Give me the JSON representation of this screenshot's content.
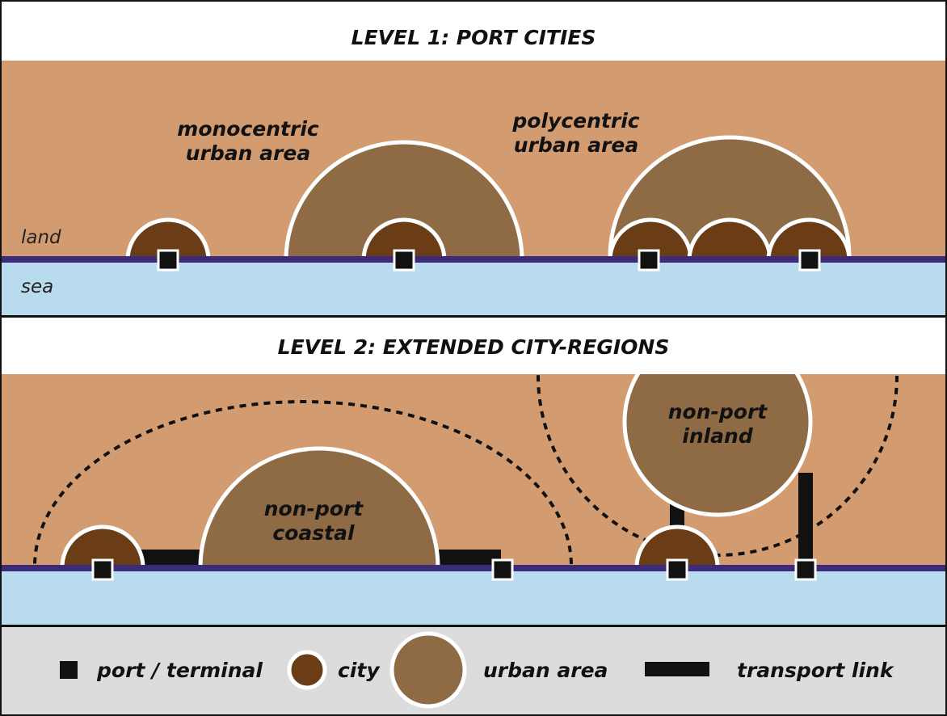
{
  "level_1": {
    "title": "LEVEL 1: PORT CITIES",
    "labels": {
      "monocentric": [
        "monocentric",
        "urban area"
      ],
      "polycentric": [
        "polycentric",
        "urban area"
      ],
      "land": "land",
      "sea": "sea"
    }
  },
  "level_2": {
    "title": "LEVEL 2: EXTENDED CITY-REGIONS",
    "labels": {
      "inland": [
        "non-port",
        "inland"
      ],
      "coastal": [
        "non-port",
        "coastal"
      ]
    }
  },
  "legend": {
    "items": [
      "port / terminal",
      "city",
      "urban area",
      "transport link"
    ]
  }
}
